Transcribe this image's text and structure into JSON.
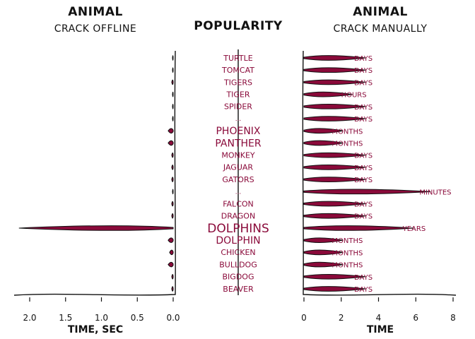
{
  "chart_data": {
    "type": "bar",
    "style": "xkcd",
    "colors": {
      "bar": "#8a0a3a",
      "text": "#111111",
      "label": "#8a0a3a"
    },
    "center": {
      "title": "POPULARITY"
    },
    "categories": [
      "TURTLE",
      "TOMCAT",
      "TIGERS",
      "TIGER",
      "SPIDER",
      "...",
      "PHOENIX",
      "PANTHER",
      "MONKEY",
      "JAGUAR",
      "GATORS",
      "...",
      "FALCON",
      "DRAGON",
      "DOLPHINS",
      "DOLPHIN",
      "CHICKEN",
      "BULLDOG",
      "BIGDOG",
      "BEAVER"
    ],
    "popularity": [
      1,
      1,
      1,
      1,
      1,
      0,
      2,
      2,
      1,
      1,
      1,
      0,
      1,
      1,
      3,
      2,
      1,
      1,
      1,
      1
    ],
    "left": {
      "title": "ANIMAL",
      "subtitle": "CRACK OFFLINE",
      "xlabel": "TIME, SEC",
      "xlim": [
        2.1,
        0
      ],
      "ticks": [
        "2.0",
        "1.5",
        "1.0",
        "0.5",
        "0.0"
      ],
      "tick_values": [
        2.0,
        1.5,
        1.0,
        0.5,
        0.0
      ],
      "values": [
        0.01,
        0.01,
        0.02,
        0.01,
        0.01,
        0.01,
        0.07,
        0.07,
        0.02,
        0.02,
        0.02,
        0.01,
        0.02,
        0.02,
        2.15,
        0.07,
        0.05,
        0.07,
        0.02,
        0.02
      ]
    },
    "right": {
      "title": "ANIMAL",
      "subtitle": "CRACK MANUALLY",
      "xlabel": "TIME",
      "xlim": [
        0,
        8
      ],
      "ticks": [
        "0",
        "2",
        "4",
        "6",
        "8"
      ],
      "tick_values": [
        0,
        2,
        4,
        6,
        8
      ],
      "values": [
        3.3,
        3.3,
        3.3,
        2.6,
        3.3,
        3.3,
        2.1,
        2.1,
        3.3,
        3.3,
        3.3,
        6.8,
        3.3,
        3.3,
        5.9,
        2.1,
        2.1,
        2.1,
        3.3,
        3.3
      ],
      "labels": [
        "DAYS",
        "DAYS",
        "DAYS",
        "HOURS",
        "DAYS",
        "DAYS",
        "MONTHS",
        "MONTHS",
        "DAYS",
        "DAYS",
        "DAYS",
        "MINUTES",
        "DAYS",
        "DAYS",
        "YEARS",
        "MONTHS",
        "MONTHS",
        "MONTHS",
        "DAYS",
        "DAYS"
      ]
    }
  }
}
